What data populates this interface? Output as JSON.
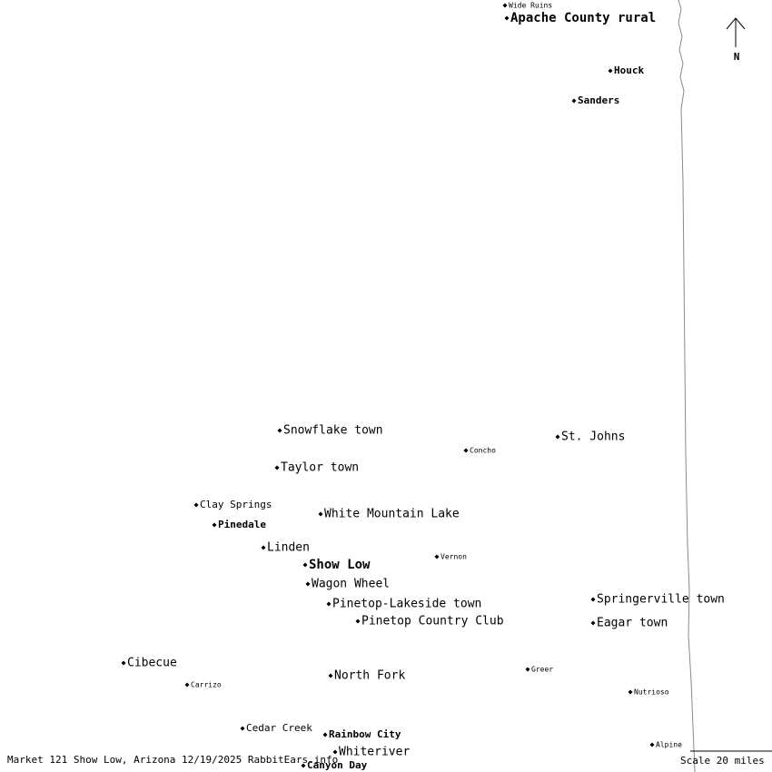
{
  "places": [
    {
      "label": "Wide Ruins"
    },
    {
      "label": "Apache County rural"
    },
    {
      "label": "Houck"
    },
    {
      "label": "Sanders"
    },
    {
      "label": "Snowflake town"
    },
    {
      "label": "Concho"
    },
    {
      "label": "St. Johns"
    },
    {
      "label": "Taylor town"
    },
    {
      "label": "Clay Springs"
    },
    {
      "label": "Pinedale"
    },
    {
      "label": "White Mountain Lake"
    },
    {
      "label": "Linden"
    },
    {
      "label": "Vernon"
    },
    {
      "label": "Show Low"
    },
    {
      "label": "Wagon Wheel"
    },
    {
      "label": "Springerville town"
    },
    {
      "label": "Pinetop-Lakeside town"
    },
    {
      "label": "Pinetop Country Club"
    },
    {
      "label": "Eagar town"
    },
    {
      "label": "Cibecue"
    },
    {
      "label": "Carrizo"
    },
    {
      "label": "North Fork"
    },
    {
      "label": "Greer"
    },
    {
      "label": "Nutrioso"
    },
    {
      "label": "Cedar Creek"
    },
    {
      "label": "Rainbow City"
    },
    {
      "label": "Whiteriver"
    },
    {
      "label": "Alpine"
    },
    {
      "label": "Canyon Day"
    }
  ],
  "north": "N",
  "footer": "Market 121 Show Low, Arizona 12/19/2025 RabbitEars.info",
  "scale": "Scale 20 miles"
}
